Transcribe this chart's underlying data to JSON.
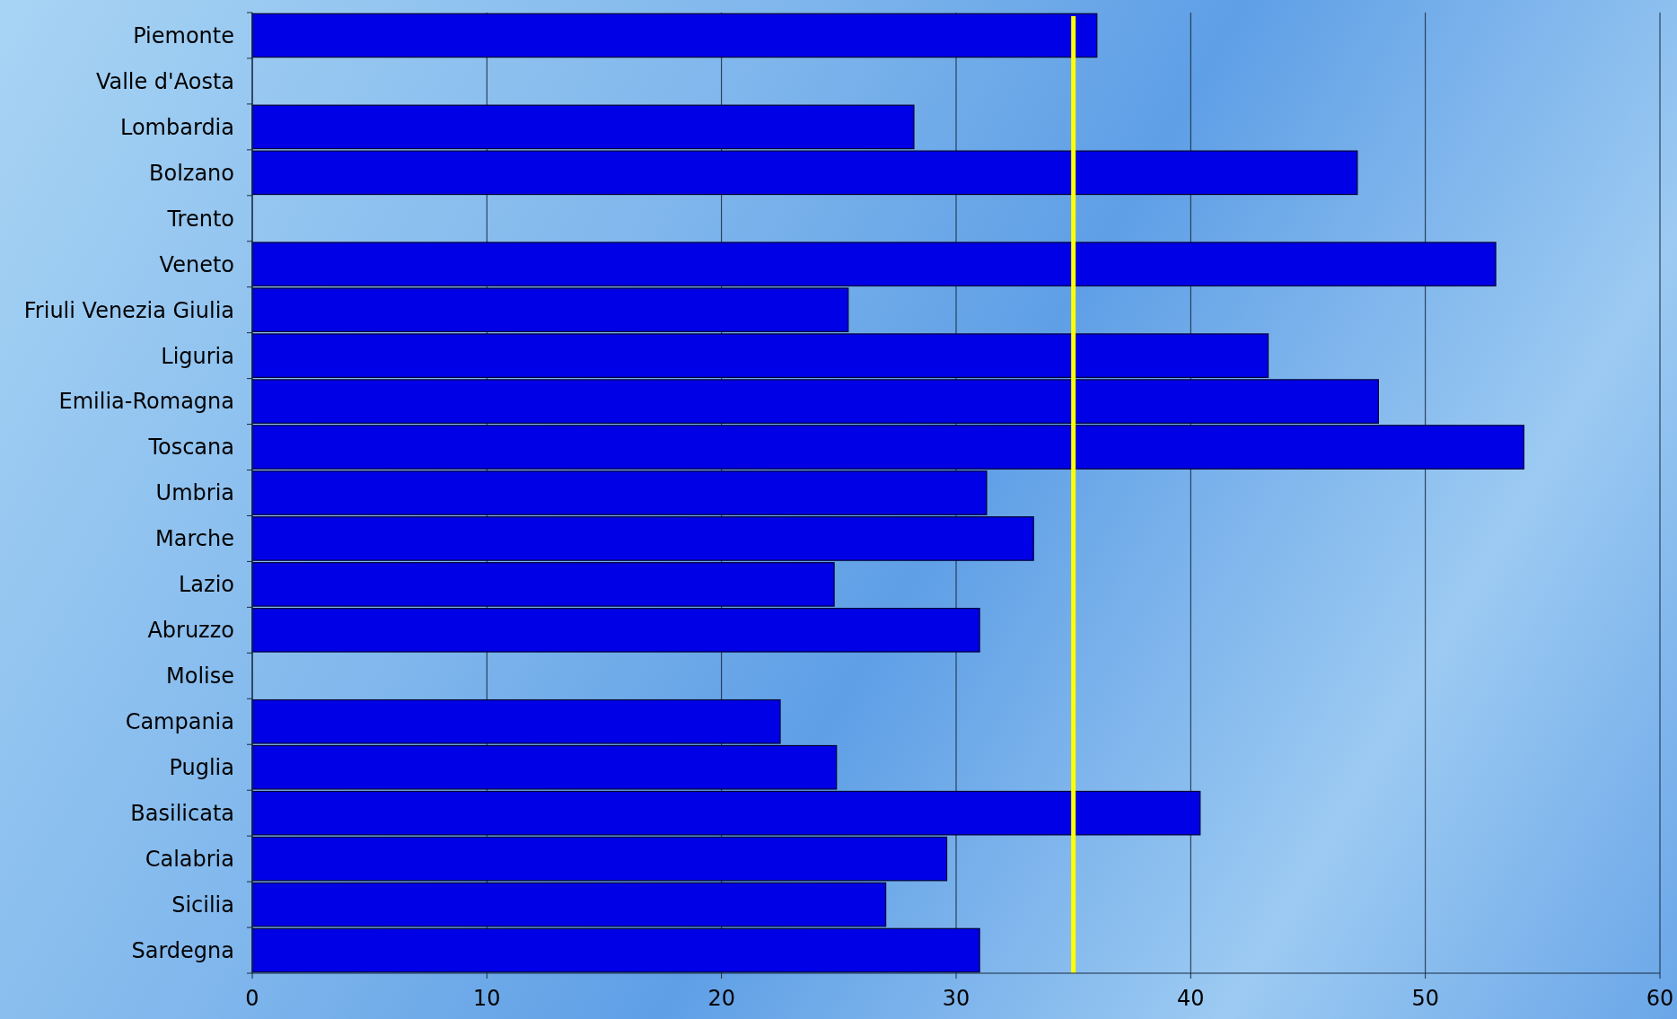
{
  "chart_data": {
    "type": "bar",
    "orientation": "horizontal",
    "categories": [
      "Piemonte",
      "Valle d'Aosta",
      "Lombardia",
      "Bolzano",
      "Trento",
      "Veneto",
      "Friuli Venezia Giulia",
      "Liguria",
      "Emilia-Romagna",
      "Toscana",
      "Umbria",
      "Marche",
      "Lazio",
      "Abruzzo",
      "Molise",
      "Campania",
      "Puglia",
      "Basilicata",
      "Calabria",
      "Sicilia",
      "Sardegna"
    ],
    "values": [
      36.0,
      null,
      28.2,
      47.1,
      null,
      53.0,
      25.4,
      43.3,
      48.0,
      54.2,
      31.3,
      33.3,
      24.8,
      31.0,
      null,
      22.5,
      24.9,
      40.4,
      29.6,
      27.0,
      31.0
    ],
    "color": "#0000e6",
    "xlim": [
      0,
      60
    ],
    "xticks": [
      0,
      10,
      20,
      30,
      40,
      50,
      60
    ],
    "grid": "x",
    "ref_lines": [
      {
        "axis": "x",
        "value": 35,
        "color": "#ffff00"
      }
    ]
  }
}
